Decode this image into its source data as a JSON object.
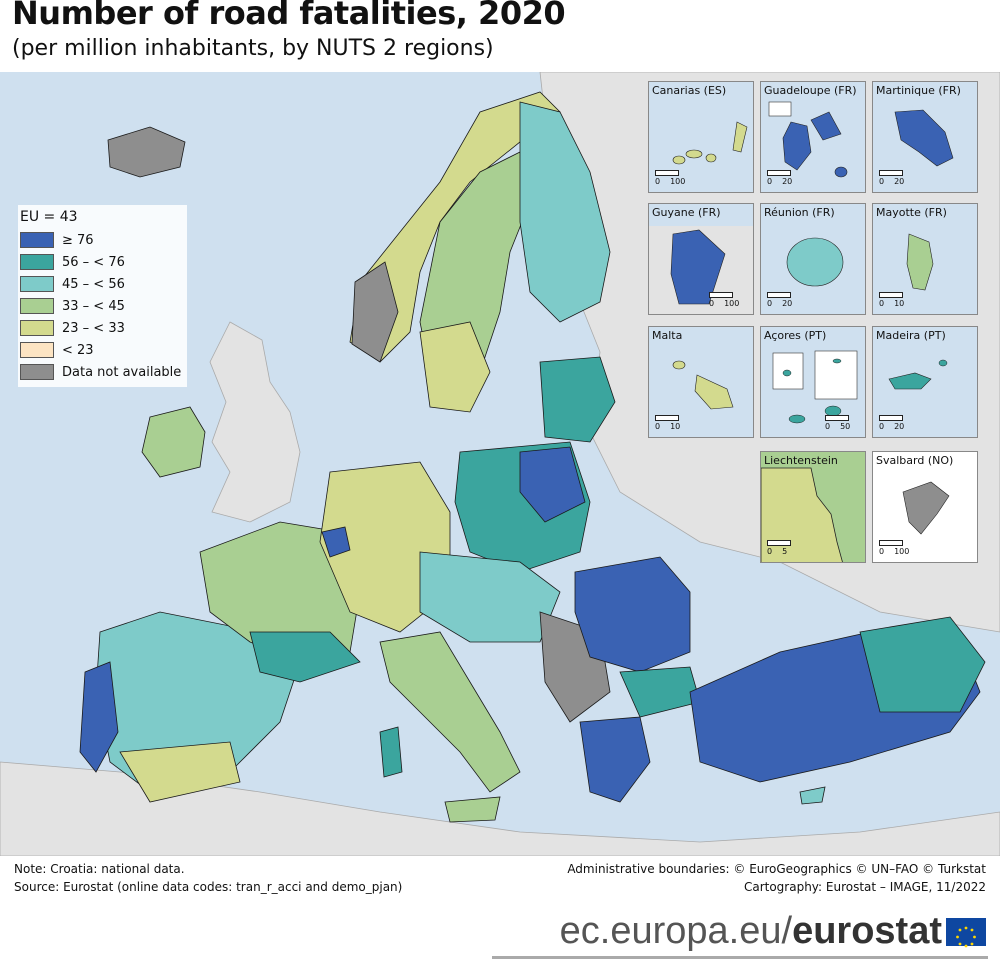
{
  "header": {
    "title": "Number of road fatalities, 2020",
    "subtitle": "(per million inhabitants, by NUTS 2 regions)"
  },
  "legend": {
    "title": "EU = 43",
    "items": [
      {
        "label": "≥ 76",
        "color": "#3a62b3"
      },
      {
        "label": "56 – < 76",
        "color": "#3ba59e"
      },
      {
        "label": "45 – < 56",
        "color": "#7ecbc9"
      },
      {
        "label": "33 – < 45",
        "color": "#a9cf92"
      },
      {
        "label": "23 – < 33",
        "color": "#d3da8e"
      },
      {
        "label": "< 23",
        "color": "#fce4c3"
      },
      {
        "label": "Data not available",
        "color": "#8e8e8e"
      }
    ]
  },
  "colors": {
    "sea": "#cfe0ef",
    "non_eu_land": "#e3e3e3",
    "border": "#1a1a1a"
  },
  "insets": [
    {
      "label": "Canarias (ES)",
      "scale_min": "0",
      "scale_max": "100",
      "color": "#d3da8e"
    },
    {
      "label": "Guadeloupe (FR)",
      "scale_min": "0",
      "scale_max": "20",
      "color": "#3a62b3"
    },
    {
      "label": "Martinique (FR)",
      "scale_min": "0",
      "scale_max": "20",
      "color": "#3a62b3"
    },
    {
      "label": "Guyane (FR)",
      "scale_min": "0",
      "scale_max": "100",
      "color": "#3a62b3"
    },
    {
      "label": "Réunion (FR)",
      "scale_min": "0",
      "scale_max": "20",
      "color": "#7ecbc9"
    },
    {
      "label": "Mayotte (FR)",
      "scale_min": "0",
      "scale_max": "10",
      "color": "#a9cf92"
    },
    {
      "label": "Malta",
      "scale_min": "0",
      "scale_max": "10",
      "color": "#d3da8e"
    },
    {
      "label": "Açores (PT)",
      "scale_min": "0",
      "scale_max": "50",
      "color": "#3ba59e"
    },
    {
      "label": "Madeira (PT)",
      "scale_min": "0",
      "scale_max": "20",
      "color": "#3ba59e"
    },
    {
      "label": "Liechtenstein",
      "scale_min": "0",
      "scale_max": "5",
      "color": "#d3da8e"
    },
    {
      "label": "Svalbard (NO)",
      "scale_min": "0",
      "scale_max": "100",
      "color": "#8e8e8e"
    }
  ],
  "footer": {
    "note": "Note: Croatia: national data.",
    "source": "Source: Eurostat (online data codes: tran_r_acci and demo_pjan)",
    "boundaries": "Administrative boundaries: © EuroGeographics © UN–FAO © Turkstat",
    "cartography": "Cartography: Eurostat – IMAGE, 11/2022"
  },
  "brand": {
    "domain": "ec.europa.eu/",
    "name": "eurostat"
  }
}
